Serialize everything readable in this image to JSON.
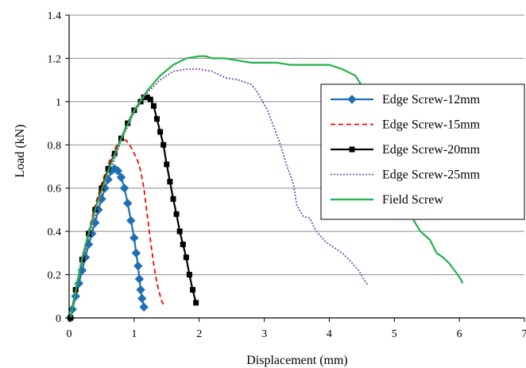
{
  "chart_data": {
    "type": "line",
    "title": "",
    "xlabel": "Displacement (mm)",
    "ylabel": "Load (kN)",
    "xlim": [
      0,
      7
    ],
    "ylim": [
      0,
      1.4
    ],
    "xticks": [
      "0",
      "1",
      "2",
      "3",
      "4",
      "5",
      "6",
      "7"
    ],
    "yticks": [
      "0",
      "0.2",
      "0.4",
      "0.6",
      "0.8",
      "1",
      "1.2",
      "1.4"
    ],
    "grid": "horizontal",
    "legend_position": "right",
    "series": [
      {
        "name": "Edge Screw-12mm",
        "color": "#1F6FB4",
        "line": "solid",
        "marker": "diamond",
        "points": [
          [
            0.02,
            0.0
          ],
          [
            0.05,
            0.04
          ],
          [
            0.1,
            0.1
          ],
          [
            0.15,
            0.16
          ],
          [
            0.2,
            0.22
          ],
          [
            0.25,
            0.28
          ],
          [
            0.3,
            0.34
          ],
          [
            0.35,
            0.39
          ],
          [
            0.4,
            0.44
          ],
          [
            0.45,
            0.5
          ],
          [
            0.5,
            0.55
          ],
          [
            0.55,
            0.6
          ],
          [
            0.6,
            0.64
          ],
          [
            0.65,
            0.68
          ],
          [
            0.7,
            0.69
          ],
          [
            0.75,
            0.68
          ],
          [
            0.8,
            0.65
          ],
          [
            0.85,
            0.6
          ],
          [
            0.9,
            0.53
          ],
          [
            0.95,
            0.45
          ],
          [
            1.0,
            0.37
          ],
          [
            1.03,
            0.3
          ],
          [
            1.06,
            0.24
          ],
          [
            1.08,
            0.18
          ],
          [
            1.1,
            0.13
          ],
          [
            1.12,
            0.09
          ],
          [
            1.15,
            0.05
          ]
        ]
      },
      {
        "name": "Edge Screw-15mm",
        "color": "#FF0000",
        "line": "dashed",
        "points": [
          [
            0.02,
            0.0
          ],
          [
            0.1,
            0.13
          ],
          [
            0.2,
            0.27
          ],
          [
            0.3,
            0.4
          ],
          [
            0.4,
            0.52
          ],
          [
            0.5,
            0.62
          ],
          [
            0.6,
            0.71
          ],
          [
            0.7,
            0.78
          ],
          [
            0.8,
            0.83
          ],
          [
            0.88,
            0.82
          ],
          [
            0.95,
            0.79
          ],
          [
            1.05,
            0.73
          ],
          [
            1.1,
            0.68
          ],
          [
            1.15,
            0.6
          ],
          [
            1.2,
            0.48
          ],
          [
            1.25,
            0.36
          ],
          [
            1.3,
            0.25
          ],
          [
            1.35,
            0.16
          ],
          [
            1.42,
            0.08
          ],
          [
            1.47,
            0.05
          ]
        ]
      },
      {
        "name": "Edge Screw-20mm",
        "color": "#000000",
        "line": "solid",
        "marker": "square",
        "points": [
          [
            0.02,
            0.0
          ],
          [
            0.1,
            0.13
          ],
          [
            0.2,
            0.27
          ],
          [
            0.3,
            0.39
          ],
          [
            0.4,
            0.5
          ],
          [
            0.5,
            0.6
          ],
          [
            0.6,
            0.69
          ],
          [
            0.7,
            0.76
          ],
          [
            0.8,
            0.83
          ],
          [
            0.9,
            0.9
          ],
          [
            1.0,
            0.96
          ],
          [
            1.1,
            1.0
          ],
          [
            1.15,
            1.02
          ],
          [
            1.2,
            1.02
          ],
          [
            1.25,
            1.01
          ],
          [
            1.3,
            0.98
          ],
          [
            1.35,
            0.92
          ],
          [
            1.4,
            0.86
          ],
          [
            1.45,
            0.8
          ],
          [
            1.5,
            0.71
          ],
          [
            1.55,
            0.63
          ],
          [
            1.6,
            0.55
          ],
          [
            1.65,
            0.48
          ],
          [
            1.7,
            0.4
          ],
          [
            1.75,
            0.34
          ],
          [
            1.8,
            0.28
          ],
          [
            1.85,
            0.2
          ],
          [
            1.9,
            0.13
          ],
          [
            1.95,
            0.07
          ]
        ]
      },
      {
        "name": "Edge Screw-25mm",
        "color": "#7A4FA8",
        "line": "dotted",
        "points": [
          [
            0.02,
            0.0
          ],
          [
            0.2,
            0.26
          ],
          [
            0.4,
            0.47
          ],
          [
            0.6,
            0.65
          ],
          [
            0.8,
            0.82
          ],
          [
            1.0,
            0.95
          ],
          [
            1.2,
            1.04
          ],
          [
            1.4,
            1.1
          ],
          [
            1.6,
            1.14
          ],
          [
            1.8,
            1.15
          ],
          [
            2.0,
            1.15
          ],
          [
            2.2,
            1.14
          ],
          [
            2.4,
            1.11
          ],
          [
            2.6,
            1.1
          ],
          [
            2.8,
            1.08
          ],
          [
            2.9,
            1.04
          ],
          [
            3.05,
            0.96
          ],
          [
            3.15,
            0.88
          ],
          [
            3.25,
            0.8
          ],
          [
            3.35,
            0.7
          ],
          [
            3.45,
            0.62
          ],
          [
            3.5,
            0.52
          ],
          [
            3.6,
            0.47
          ],
          [
            3.7,
            0.46
          ],
          [
            3.8,
            0.4
          ],
          [
            3.95,
            0.35
          ],
          [
            4.1,
            0.32
          ],
          [
            4.2,
            0.3
          ],
          [
            4.3,
            0.27
          ],
          [
            4.45,
            0.22
          ],
          [
            4.55,
            0.17
          ],
          [
            4.6,
            0.15
          ]
        ]
      },
      {
        "name": "Field Screw",
        "color": "#22B14C",
        "line": "solid",
        "points": [
          [
            0.02,
            0.0
          ],
          [
            0.2,
            0.28
          ],
          [
            0.4,
            0.5
          ],
          [
            0.6,
            0.68
          ],
          [
            0.8,
            0.83
          ],
          [
            1.0,
            0.96
          ],
          [
            1.2,
            1.05
          ],
          [
            1.4,
            1.12
          ],
          [
            1.6,
            1.17
          ],
          [
            1.8,
            1.2
          ],
          [
            2.0,
            1.21
          ],
          [
            2.1,
            1.21
          ],
          [
            2.2,
            1.2
          ],
          [
            2.4,
            1.2
          ],
          [
            2.6,
            1.19
          ],
          [
            2.8,
            1.18
          ],
          [
            3.0,
            1.18
          ],
          [
            3.2,
            1.18
          ],
          [
            3.4,
            1.17
          ],
          [
            3.6,
            1.17
          ],
          [
            3.8,
            1.17
          ],
          [
            4.0,
            1.17
          ],
          [
            4.2,
            1.15
          ],
          [
            4.4,
            1.12
          ],
          [
            4.55,
            1.05
          ],
          [
            4.7,
            0.95
          ],
          [
            4.85,
            0.82
          ],
          [
            5.0,
            0.7
          ],
          [
            5.1,
            0.6
          ],
          [
            5.2,
            0.52
          ],
          [
            5.3,
            0.45
          ],
          [
            5.4,
            0.4
          ],
          [
            5.55,
            0.36
          ],
          [
            5.65,
            0.3
          ],
          [
            5.75,
            0.28
          ],
          [
            5.85,
            0.25
          ],
          [
            5.95,
            0.21
          ],
          [
            6.02,
            0.18
          ],
          [
            6.05,
            0.16
          ]
        ]
      }
    ]
  }
}
